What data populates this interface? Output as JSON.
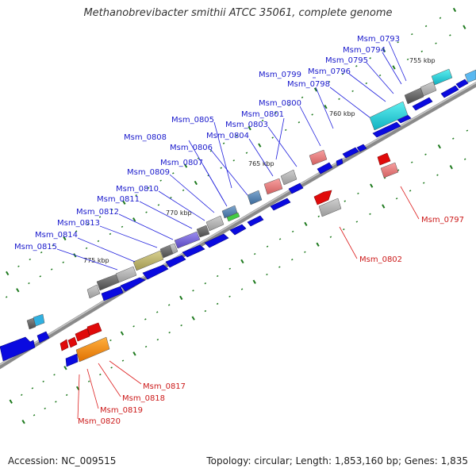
{
  "title": "Methanobrevibacter smithii ATCC 35061, complete genome",
  "footer": {
    "accession": "Accession: NC_009515",
    "summary": "Topology: circular; Length: 1,853,160 bp; Genes: 1,835"
  },
  "kbp_marks": [
    "755 kbp",
    "760 kbp",
    "765 kbp",
    "770 kbp",
    "775 kbp"
  ],
  "forward_labels": [
    "Msm_0793",
    "Msm_0794",
    "Msm_0795",
    "Msm_0796",
    "Msm_0798",
    "Msm_0799",
    "Msm_0800",
    "Msm_0801",
    "Msm_0803",
    "Msm_0804",
    "Msm_0805",
    "Msm_0806",
    "Msm_0807",
    "Msm_0808",
    "Msm_0809",
    "Msm_0810",
    "Msm_0811",
    "Msm_0812",
    "Msm_0813",
    "Msm_0814",
    "Msm_0815"
  ],
  "reverse_labels": [
    "Msm_0797",
    "Msm_0802",
    "Msm_0817",
    "Msm_0818",
    "Msm_0819",
    "Msm_0820"
  ],
  "colors": {
    "forward_cds": "#0a0ae0",
    "reverse_cds": "#e00a0a",
    "forward_label": "#1a1acc",
    "reverse_label": "#cc1a1a",
    "backbone": "#888888",
    "tick": "#1e7a1e"
  }
}
